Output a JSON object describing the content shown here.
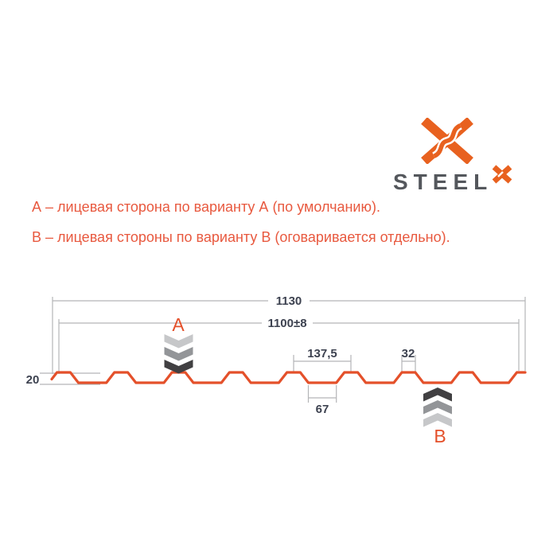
{
  "logo": {
    "brand": "STEEL",
    "brand_mark": "X"
  },
  "notes": {
    "variant_a": "А – лицевая сторона по варианту А (по умолчанию).",
    "variant_b": "В – лицевая стороны по варианту В (оговаривается отдельно)."
  },
  "drawing": {
    "labels": {
      "overall_width": "1130",
      "cover_width": "1100±8",
      "pitch": "137,5",
      "crest_top": "32",
      "valley_bottom": "67",
      "height": "20"
    },
    "marker_a": "A",
    "marker_b": "B",
    "profile_mm": {
      "overall_width": 1130,
      "cover_width": 1100,
      "cover_tolerance": 8,
      "rib_pitch": 137.5,
      "crest_top_width": 32,
      "valley_bottom_width": 67,
      "height": 20
    }
  },
  "colors": {
    "logo_orange": "#E8611F",
    "wordmark_gray": "#54575C",
    "note_red": "#E8593F",
    "profile_orange": "#E4502A",
    "dim_line_gray": "#B4B5B7",
    "dim_text_dark": "#3D4250",
    "chevron_light": "#C6C7C9",
    "chevron_mid": "#939598",
    "chevron_dark": "#414042"
  }
}
